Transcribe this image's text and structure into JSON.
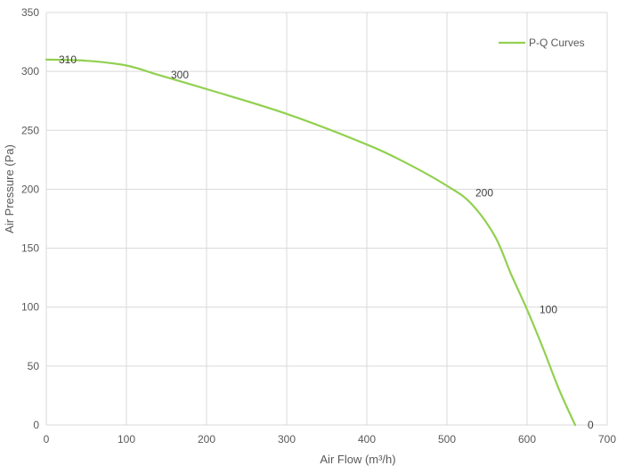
{
  "chart_data": {
    "type": "line",
    "xlabel": "Air Flow  (m³/h)",
    "ylabel": "Air Pressure  (Pa)",
    "xlim": [
      0,
      700
    ],
    "ylim": [
      0,
      350
    ],
    "x_ticks": [
      0,
      100,
      200,
      300,
      400,
      500,
      600,
      700
    ],
    "y_ticks": [
      0,
      50,
      100,
      150,
      200,
      250,
      300,
      350
    ],
    "x_tick_labels": [
      "0",
      "100",
      "200",
      "300",
      "400",
      "500",
      "600",
      "700"
    ],
    "y_tick_labels": [
      "0",
      "50",
      "100",
      "150",
      "200",
      "250",
      "300",
      "350"
    ],
    "grid": true,
    "legend_position": "top-right",
    "series": [
      {
        "name": "P-Q Curves",
        "color": "#92d050",
        "points": [
          {
            "x": 0,
            "y": 310
          },
          {
            "x": 50,
            "y": 309
          },
          {
            "x": 100,
            "y": 305
          },
          {
            "x": 140,
            "y": 297
          },
          {
            "x": 200,
            "y": 285
          },
          {
            "x": 300,
            "y": 264
          },
          {
            "x": 400,
            "y": 238
          },
          {
            "x": 450,
            "y": 222
          },
          {
            "x": 500,
            "y": 203
          },
          {
            "x": 530,
            "y": 188
          },
          {
            "x": 560,
            "y": 160
          },
          {
            "x": 580,
            "y": 128
          },
          {
            "x": 600,
            "y": 98
          },
          {
            "x": 620,
            "y": 65
          },
          {
            "x": 640,
            "y": 30
          },
          {
            "x": 660,
            "y": 0
          }
        ]
      }
    ],
    "data_labels": [
      {
        "x": 0,
        "y": 310,
        "text": "310"
      },
      {
        "x": 140,
        "y": 297,
        "text": "300"
      },
      {
        "x": 520,
        "y": 197,
        "text": "200"
      },
      {
        "x": 600,
        "y": 98,
        "text": "100"
      },
      {
        "x": 660,
        "y": 0,
        "text": "0"
      }
    ]
  }
}
